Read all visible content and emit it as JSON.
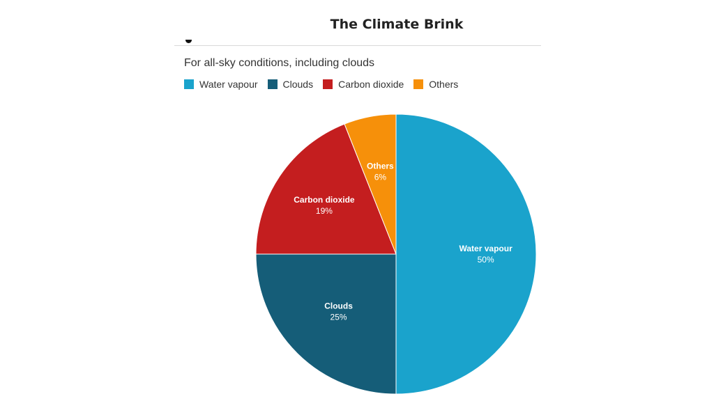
{
  "page": {
    "title": "The Climate Brink"
  },
  "chart_data": {
    "type": "pie",
    "subtitle": "For all-sky conditions, including clouds",
    "legend_position": "top-left",
    "slices": [
      {
        "label": "Water vapour",
        "value": 50,
        "display": "50%",
        "color": "#1aa3cc"
      },
      {
        "label": "Clouds",
        "value": 25,
        "display": "25%",
        "color": "#155d78"
      },
      {
        "label": "Carbon dioxide",
        "value": 19,
        "display": "19%",
        "color": "#c41e1f"
      },
      {
        "label": "Others",
        "value": 6,
        "display": "6%",
        "color": "#f6900a"
      }
    ]
  }
}
